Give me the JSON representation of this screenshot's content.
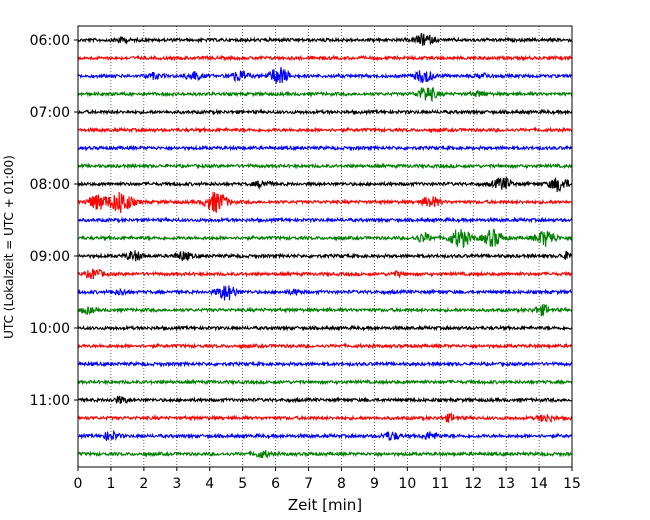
{
  "chart_data": {
    "type": "line",
    "title": "",
    "xlabel": "Zeit  [min]",
    "ylabel": "UTC (Lokalzeit = UTC + 01:00)",
    "xlim": [
      0,
      15
    ],
    "x_ticks": [
      0,
      1,
      2,
      3,
      4,
      5,
      6,
      7,
      8,
      9,
      10,
      11,
      12,
      13,
      14,
      15
    ],
    "y_tick_labels": [
      "06:00",
      "07:00",
      "08:00",
      "09:00",
      "10:00",
      "11:00"
    ],
    "grid": "vertical dotted lines at each minute",
    "trace_interval_minutes": 15,
    "trace_colors": [
      "#000000",
      "#ff0000",
      "#0000ff",
      "#008000"
    ],
    "traces": [
      {
        "start": "06:00",
        "color": "#000000",
        "bursts": [
          {
            "t": 1.3,
            "amp": 0.25
          },
          {
            "t": 10.5,
            "amp": 0.6
          }
        ]
      },
      {
        "start": "06:15",
        "color": "#ff0000",
        "bursts": []
      },
      {
        "start": "06:30",
        "color": "#0000ff",
        "bursts": [
          {
            "t": 2.3,
            "amp": 0.3
          },
          {
            "t": 3.5,
            "amp": 0.45
          },
          {
            "t": 4.9,
            "amp": 0.55
          },
          {
            "t": 6.1,
            "amp": 0.9
          },
          {
            "t": 10.5,
            "amp": 0.7
          },
          {
            "t": 12.3,
            "amp": 0.25
          }
        ]
      },
      {
        "start": "06:45",
        "color": "#008000",
        "bursts": [
          {
            "t": 10.6,
            "amp": 0.8
          },
          {
            "t": 12.2,
            "amp": 0.25
          }
        ]
      },
      {
        "start": "07:00",
        "color": "#000000",
        "bursts": []
      },
      {
        "start": "07:15",
        "color": "#ff0000",
        "bursts": []
      },
      {
        "start": "07:30",
        "color": "#0000ff",
        "bursts": []
      },
      {
        "start": "07:45",
        "color": "#008000",
        "bursts": []
      },
      {
        "start": "08:00",
        "color": "#000000",
        "bursts": [
          {
            "t": 5.6,
            "amp": 0.35
          },
          {
            "t": 12.9,
            "amp": 0.65
          },
          {
            "t": 14.6,
            "amp": 0.75
          }
        ]
      },
      {
        "start": "08:15",
        "color": "#ff0000",
        "bursts": [
          {
            "t": 0.6,
            "amp": 0.8
          },
          {
            "t": 1.3,
            "amp": 1.2
          },
          {
            "t": 4.2,
            "amp": 1.1
          },
          {
            "t": 10.7,
            "amp": 0.6
          }
        ]
      },
      {
        "start": "08:30",
        "color": "#0000ff",
        "bursts": []
      },
      {
        "start": "08:45",
        "color": "#008000",
        "bursts": [
          {
            "t": 10.5,
            "amp": 0.45
          },
          {
            "t": 11.6,
            "amp": 1.0
          },
          {
            "t": 12.6,
            "amp": 0.9
          },
          {
            "t": 14.2,
            "amp": 0.85
          }
        ]
      },
      {
        "start": "09:00",
        "color": "#000000",
        "bursts": [
          {
            "t": 1.7,
            "amp": 0.5
          },
          {
            "t": 3.2,
            "amp": 0.45
          },
          {
            "t": 14.9,
            "amp": 0.35
          }
        ]
      },
      {
        "start": "09:15",
        "color": "#ff0000",
        "bursts": [
          {
            "t": 0.5,
            "amp": 0.5
          },
          {
            "t": 9.7,
            "amp": 0.2
          }
        ]
      },
      {
        "start": "09:30",
        "color": "#0000ff",
        "bursts": [
          {
            "t": 1.3,
            "amp": 0.25
          },
          {
            "t": 4.5,
            "amp": 0.85
          },
          {
            "t": 6.6,
            "amp": 0.25
          }
        ]
      },
      {
        "start": "09:45",
        "color": "#008000",
        "bursts": [
          {
            "t": 0.3,
            "amp": 0.3
          },
          {
            "t": 14.1,
            "amp": 0.5
          }
        ]
      },
      {
        "start": "10:00",
        "color": "#000000",
        "bursts": []
      },
      {
        "start": "10:15",
        "color": "#ff0000",
        "bursts": []
      },
      {
        "start": "10:30",
        "color": "#0000ff",
        "bursts": []
      },
      {
        "start": "10:45",
        "color": "#008000",
        "bursts": []
      },
      {
        "start": "11:00",
        "color": "#000000",
        "bursts": [
          {
            "t": 1.3,
            "amp": 0.35
          }
        ]
      },
      {
        "start": "11:15",
        "color": "#ff0000",
        "bursts": [
          {
            "t": 11.3,
            "amp": 0.35
          },
          {
            "t": 14.2,
            "amp": 0.4
          }
        ]
      },
      {
        "start": "11:30",
        "color": "#0000ff",
        "bursts": [
          {
            "t": 1.0,
            "amp": 0.45
          },
          {
            "t": 9.5,
            "amp": 0.45
          },
          {
            "t": 10.7,
            "amp": 0.4
          }
        ]
      },
      {
        "start": "11:45",
        "color": "#008000",
        "bursts": [
          {
            "t": 5.6,
            "amp": 0.35
          }
        ]
      }
    ]
  }
}
